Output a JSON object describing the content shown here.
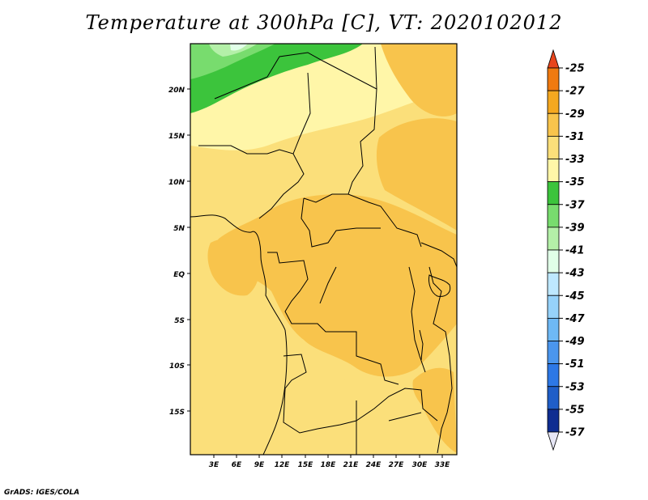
{
  "title": "Temperature at 300hPa [C], VT: 2020102012",
  "footer": "GrADS: IGES/COLA",
  "axes": {
    "lat_labels": [
      "20N",
      "15N",
      "10N",
      "5N",
      "EQ",
      "5S",
      "10S",
      "15S"
    ],
    "lon_labels": [
      "3E",
      "6E",
      "9E",
      "12E",
      "15E",
      "18E",
      "21E",
      "24E",
      "27E",
      "30E",
      "33E"
    ]
  },
  "colorbar": {
    "labels": [
      "-25",
      "-27",
      "-29",
      "-31",
      "-33",
      "-35",
      "-37",
      "-39",
      "-41",
      "-43",
      "-45",
      "-47",
      "-49",
      "-51",
      "-53",
      "-55",
      "-57"
    ],
    "colors": [
      "#e8451c",
      "#f07a10",
      "#f5a820",
      "#f8c44c",
      "#fbdf7a",
      "#fff6a8",
      "#3cc43c",
      "#78dc6e",
      "#b4f0a8",
      "#e1ffe8",
      "#bee8ff",
      "#96d2fa",
      "#6eb9f5",
      "#4b96ee",
      "#2d78e6",
      "#1f5ec8",
      "#0f2d91",
      "#e6e6f5"
    ]
  }
}
